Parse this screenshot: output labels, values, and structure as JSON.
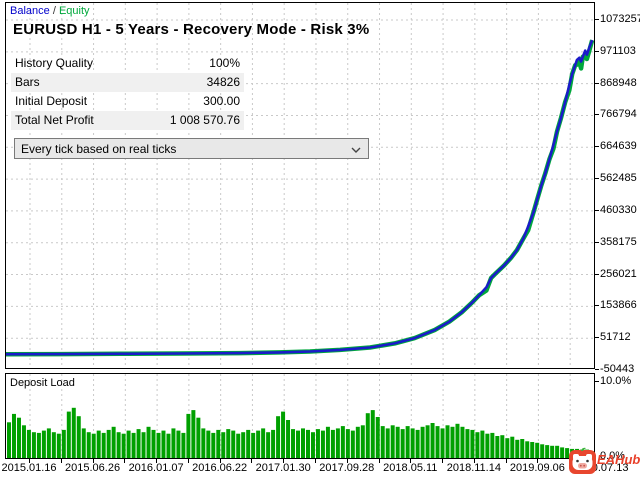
{
  "legend": {
    "balance_label": "Balance",
    "separator": "/",
    "equity_label": "Equity"
  },
  "header": {
    "title": "EURUSD H1 - 5 Years - Recovery Mode - Risk 3%"
  },
  "stats": {
    "rows": [
      {
        "label": "History Quality",
        "value": "100%"
      },
      {
        "label": "Bars",
        "value": "34826"
      },
      {
        "label": "Initial Deposit",
        "value": "300.00"
      },
      {
        "label": "Total Net Profit",
        "value": "1 008 570.76"
      }
    ]
  },
  "controls": {
    "mode_select": {
      "value": "Every tick based on real ticks"
    }
  },
  "colors": {
    "balance": "#1b1bc9",
    "equity": "#00a83c",
    "deposit_bars": "#00a000",
    "grid": "#c9c9c9",
    "watermark_red": "#e8402a"
  },
  "watermark": {
    "text": "EAHub",
    "icon": "pig-logo"
  },
  "chart_data": [
    {
      "type": "line",
      "title": "EURUSD H1 - 5 Years - Recovery Mode - Risk 3%",
      "x_domain": [
        "2015.01.16",
        "2020.07.13"
      ],
      "x_tick_labels": [
        "2015.01.16",
        "2015.06.26",
        "2016.01.07",
        "2016.06.22",
        "2017.01.30",
        "2017.09.28",
        "2018.05.11",
        "2018.11.14",
        "2019.09.06",
        "2020.07.13"
      ],
      "y_tick_labels": [
        "1073257",
        "971103",
        "868948",
        "766794",
        "664639",
        "562485",
        "460330",
        "358175",
        "256021",
        "153866",
        "51712",
        "-50443"
      ],
      "ylim": [
        -50443,
        1073257
      ],
      "grid": true,
      "legend_position": "top-left",
      "series": [
        {
          "name": "Balance",
          "color": "#1b1bc9",
          "points": [
            [
              0,
              300
            ],
            [
              0.093,
              800
            ],
            [
              0.195,
              1500
            ],
            [
              0.297,
              2500
            ],
            [
              0.398,
              4000
            ],
            [
              0.466,
              6000
            ],
            [
              0.517,
              9000
            ],
            [
              0.568,
              14000
            ],
            [
              0.619,
              22000
            ],
            [
              0.661,
              35000
            ],
            [
              0.695,
              52000
            ],
            [
              0.729,
              78000
            ],
            [
              0.754,
              105000
            ],
            [
              0.775,
              135000
            ],
            [
              0.792,
              165000
            ],
            [
              0.805,
              190000
            ],
            [
              0.817,
              215000
            ],
            [
              0.825,
              245000
            ],
            [
              0.834,
              262000
            ],
            [
              0.847,
              285000
            ],
            [
              0.859,
              310000
            ],
            [
              0.869,
              335000
            ],
            [
              0.88,
              372000
            ],
            [
              0.888,
              410000
            ],
            [
              0.897,
              455000
            ],
            [
              0.903,
              495000
            ],
            [
              0.91,
              540000
            ],
            [
              0.917,
              580000
            ],
            [
              0.924,
              625000
            ],
            [
              0.931,
              672000
            ],
            [
              0.937,
              715000
            ],
            [
              0.944,
              760000
            ],
            [
              0.951,
              810000
            ],
            [
              0.958,
              865000
            ],
            [
              0.963,
              900000
            ],
            [
              0.968,
              928000
            ],
            [
              0.971,
              945000
            ],
            [
              0.975,
              952000
            ],
            [
              0.978,
              940000
            ],
            [
              0.981,
              955000
            ],
            [
              0.985,
              975000
            ],
            [
              0.988,
              962000
            ],
            [
              0.992,
              985000
            ],
            [
              0.997,
              1008871
            ]
          ]
        },
        {
          "name": "Equity",
          "color": "#00a83c",
          "points": [
            [
              0,
              300
            ],
            [
              0.093,
              800
            ],
            [
              0.195,
              1500
            ],
            [
              0.297,
              2500
            ],
            [
              0.398,
              4000
            ],
            [
              0.466,
              6000
            ],
            [
              0.517,
              9000
            ],
            [
              0.568,
              14000
            ],
            [
              0.619,
              22000
            ],
            [
              0.661,
              35000
            ],
            [
              0.695,
              52000
            ],
            [
              0.729,
              78000
            ],
            [
              0.754,
              105000
            ],
            [
              0.775,
              135000
            ],
            [
              0.792,
              165000
            ],
            [
              0.805,
              190000
            ],
            [
              0.817,
              205000
            ],
            [
              0.825,
              245000
            ],
            [
              0.834,
              262000
            ],
            [
              0.847,
              285000
            ],
            [
              0.859,
              310000
            ],
            [
              0.869,
              335000
            ],
            [
              0.88,
              372000
            ],
            [
              0.888,
              398000
            ],
            [
              0.897,
              455000
            ],
            [
              0.903,
              495000
            ],
            [
              0.91,
              540000
            ],
            [
              0.917,
              580000
            ],
            [
              0.924,
              625000
            ],
            [
              0.931,
              660000
            ],
            [
              0.937,
              715000
            ],
            [
              0.944,
              760000
            ],
            [
              0.951,
              810000
            ],
            [
              0.958,
              848000
            ],
            [
              0.963,
              900000
            ],
            [
              0.968,
              928000
            ],
            [
              0.971,
              930000
            ],
            [
              0.975,
              938000
            ],
            [
              0.978,
              918000
            ],
            [
              0.981,
              955000
            ],
            [
              0.985,
              960000
            ],
            [
              0.988,
              948000
            ],
            [
              0.992,
              975000
            ],
            [
              0.997,
              1008871
            ]
          ]
        }
      ]
    },
    {
      "type": "bar",
      "title": "Deposit Load",
      "ylim_pct": [
        0,
        10
      ],
      "y_labels": [
        "10.0%",
        "0.0%"
      ],
      "bar_color": "#00a000",
      "values_pct": [
        4.7,
        5.8,
        5.3,
        4.3,
        3.7,
        3.4,
        3.3,
        3.6,
        3.9,
        3.4,
        3.2,
        3.7,
        6.1,
        6.6,
        5.5,
        3.9,
        3.4,
        3.2,
        3.6,
        3.3,
        3.7,
        4.1,
        3.4,
        3.2,
        3.6,
        3.3,
        3.8,
        3.4,
        4.1,
        3.7,
        3.3,
        3.6,
        3.2,
        3.9,
        3.6,
        3.3,
        5.8,
        6.3,
        5.3,
        3.9,
        3.6,
        3.3,
        3.7,
        3.4,
        3.8,
        3.6,
        3.2,
        3.4,
        3.7,
        3.3,
        3.6,
        3.9,
        3.4,
        3.7,
        5.5,
        6.1,
        5.0,
        3.8,
        3.6,
        3.9,
        3.7,
        3.4,
        3.8,
        3.6,
        4.1,
        3.7,
        3.9,
        4.2,
        3.8,
        3.6,
        4.1,
        4.3,
        5.9,
        6.3,
        5.4,
        4.2,
        3.9,
        4.3,
        4.1,
        3.8,
        4.2,
        3.9,
        3.7,
        4.1,
        4.3,
        4.6,
        4.2,
        3.9,
        4.3,
        4.1,
        4.5,
        4.1,
        3.8,
        3.7,
        3.4,
        3.6,
        3.2,
        3.3,
        2.9,
        3.0,
        2.6,
        2.8,
        2.4,
        2.5,
        2.2,
        2.1,
        2.0,
        1.8,
        1.7,
        1.6,
        1.6,
        1.4,
        1.3,
        1.2,
        1.2,
        1.1,
        1.1,
        0.9
      ]
    }
  ]
}
